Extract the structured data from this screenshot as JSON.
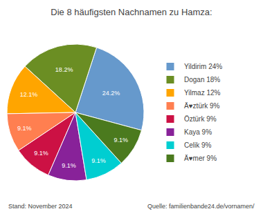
{
  "chart_data": {
    "type": "pie",
    "title": "Die 8 häufigsten Nachnamen zu Hamza:",
    "categories": [
      "Yildirim 24%",
      "Dogan 18%",
      "Yilmaz 12%",
      "Ä♥ztürk 9%",
      "Öztürk 9%",
      "Kaya 9%",
      "Celik 9%",
      "Ä♥mer 9%"
    ],
    "values": [
      24.2,
      18.2,
      12.1,
      9.1,
      9.1,
      9.1,
      9.1,
      9.1
    ],
    "value_labels": [
      "24.2%",
      "18.2%",
      "12.1%",
      "9.1%",
      "9.1%",
      "9.1%",
      "9.1%",
      "9.1%"
    ],
    "colors": [
      "#6699CC",
      "#6B8E23",
      "#FFA500",
      "#FF7F50",
      "#CC1144",
      "#882299",
      "#00CED1",
      "#4B7A1E"
    ],
    "data_labels": true,
    "legend": "right",
    "annotations": [
      "Stand: November 2024",
      "Quelle: familienbande24.de/vornamen/"
    ]
  }
}
